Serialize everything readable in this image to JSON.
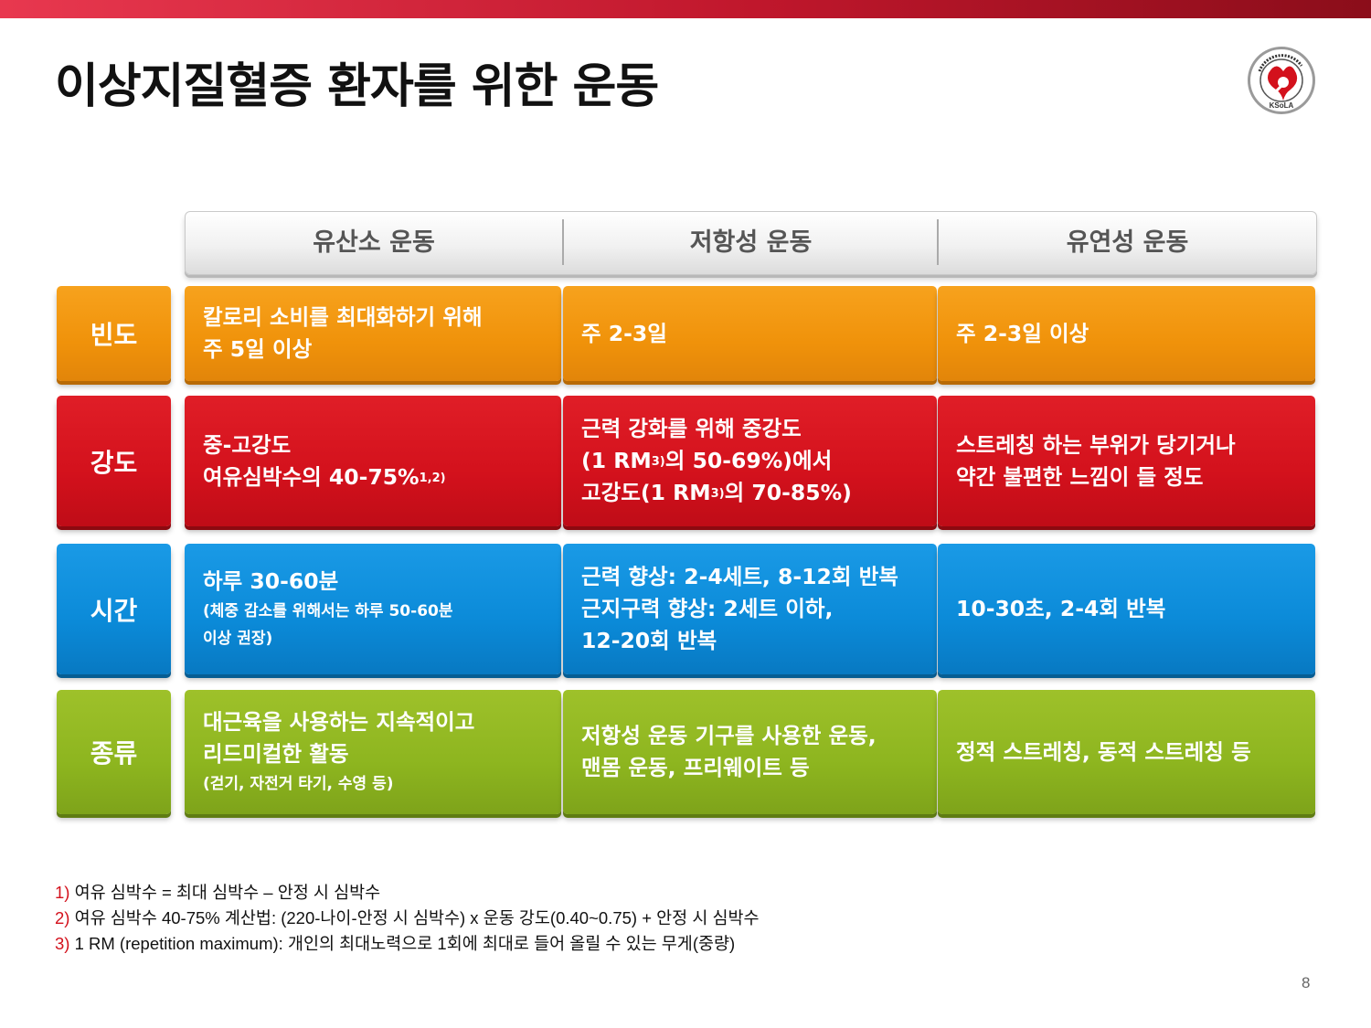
{
  "page": {
    "title": "이상지질혈증 환자를 위한 운동",
    "page_number": "8",
    "accent_color": "#d3111c"
  },
  "logo": {
    "name": "KSoLA logo",
    "text": "The Korean Society of Lipid and Atherosclerosis · KSoLA"
  },
  "table": {
    "headers": [
      "유산소 운동",
      "저항성 운동",
      "유연성 운동"
    ],
    "rows": [
      {
        "label": "빈도",
        "color": "#f0920a",
        "aerobic": {
          "lines": [
            "칼로리 소비를 최대화하기 위해",
            "주 5일 이상"
          ]
        },
        "resistance": {
          "lines": [
            "주 2-3일"
          ]
        },
        "flexibility": {
          "lines": [
            "주 2-3일 이상"
          ]
        }
      },
      {
        "label": "강도",
        "color": "#d3111c",
        "aerobic": {
          "line1": "중-고강도",
          "line2_text": "여유심박수의 40-75%",
          "line2_sup": "1,2)"
        },
        "resistance": {
          "line1": "근력 강화를 위해 중강도",
          "line2_a": "(1 RM",
          "line2_sup": "3)",
          "line2_b": "의 50-69%)에서",
          "line3_a": "고강도(1 RM",
          "line3_sup": "3)",
          "line3_b": "의 70-85%)"
        },
        "flexibility": {
          "lines": [
            "스트레칭 하는 부위가 당기거나",
            "약간 불편한 느낌이 들 정도"
          ]
        }
      },
      {
        "label": "시간",
        "color": "#0b8ad8",
        "aerobic": {
          "main": "하루 30-60분",
          "note_lines": [
            "(체중 감소를 위해서는 하루 50-60분",
            "이상 권장)"
          ]
        },
        "resistance": {
          "lines": [
            "근력 향상: 2-4세트, 8-12회 반복",
            "근지구력 향상: 2세트 이하,",
            "12-20회 반복"
          ]
        },
        "flexibility": {
          "lines": [
            "10-30초, 2-4회 반복"
          ]
        }
      },
      {
        "label": "종류",
        "color": "#8db51f",
        "aerobic": {
          "lines": [
            "대근육을 사용하는 지속적이고",
            "리드미컬한 활동"
          ],
          "note": "(걷기, 자전거 타기, 수영 등)"
        },
        "resistance": {
          "lines": [
            "저항성 운동 기구를 사용한 운동,",
            "맨몸 운동, 프리웨이트 등"
          ]
        },
        "flexibility": {
          "lines": [
            "정적 스트레칭, 동적 스트레칭 등"
          ]
        }
      }
    ]
  },
  "footnotes": [
    {
      "num": "1)",
      "text": " 여유 심박수 = 최대 심박수 – 안정 시 심박수"
    },
    {
      "num": "2)",
      "text": " 여유 심박수 40-75% 계산법: (220-나이-안정 시 심박수) x 운동 강도(0.40~0.75) + 안정 시 심박수"
    },
    {
      "num": "3)",
      "text": " 1 RM (repetition maximum): 개인의 최대노력으로 1회에 최대로 들어 올릴 수 있는 무게(중량)"
    }
  ]
}
